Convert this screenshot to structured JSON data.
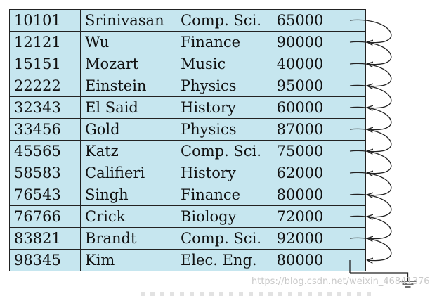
{
  "table": {
    "rows": [
      {
        "id": "10101",
        "name": "Srinivasan",
        "dept": "Comp. Sci.",
        "salary": "65000"
      },
      {
        "id": "12121",
        "name": "Wu",
        "dept": "Finance",
        "salary": "90000"
      },
      {
        "id": "15151",
        "name": "Mozart",
        "dept": "Music",
        "salary": "40000"
      },
      {
        "id": "22222",
        "name": "Einstein",
        "dept": "Physics",
        "salary": "95000"
      },
      {
        "id": "32343",
        "name": "El Said",
        "dept": "History",
        "salary": "60000"
      },
      {
        "id": "33456",
        "name": "Gold",
        "dept": "Physics",
        "salary": "87000"
      },
      {
        "id": "45565",
        "name": "Katz",
        "dept": "Comp. Sci.",
        "salary": "75000"
      },
      {
        "id": "58583",
        "name": "Califieri",
        "dept": "History",
        "salary": "62000"
      },
      {
        "id": "76543",
        "name": "Singh",
        "dept": "Finance",
        "salary": "80000"
      },
      {
        "id": "76766",
        "name": "Crick",
        "dept": "Biology",
        "salary": "72000"
      },
      {
        "id": "83821",
        "name": "Brandt",
        "dept": "Comp. Sci.",
        "salary": "92000"
      },
      {
        "id": "98345",
        "name": "Kim",
        "dept": "Elec. Eng.",
        "salary": "80000"
      }
    ]
  },
  "colors": {
    "cell_fill": "#c6e6ef",
    "border": "#222222"
  },
  "watermark": "https://blog.csdn.net/weixin_46841376"
}
